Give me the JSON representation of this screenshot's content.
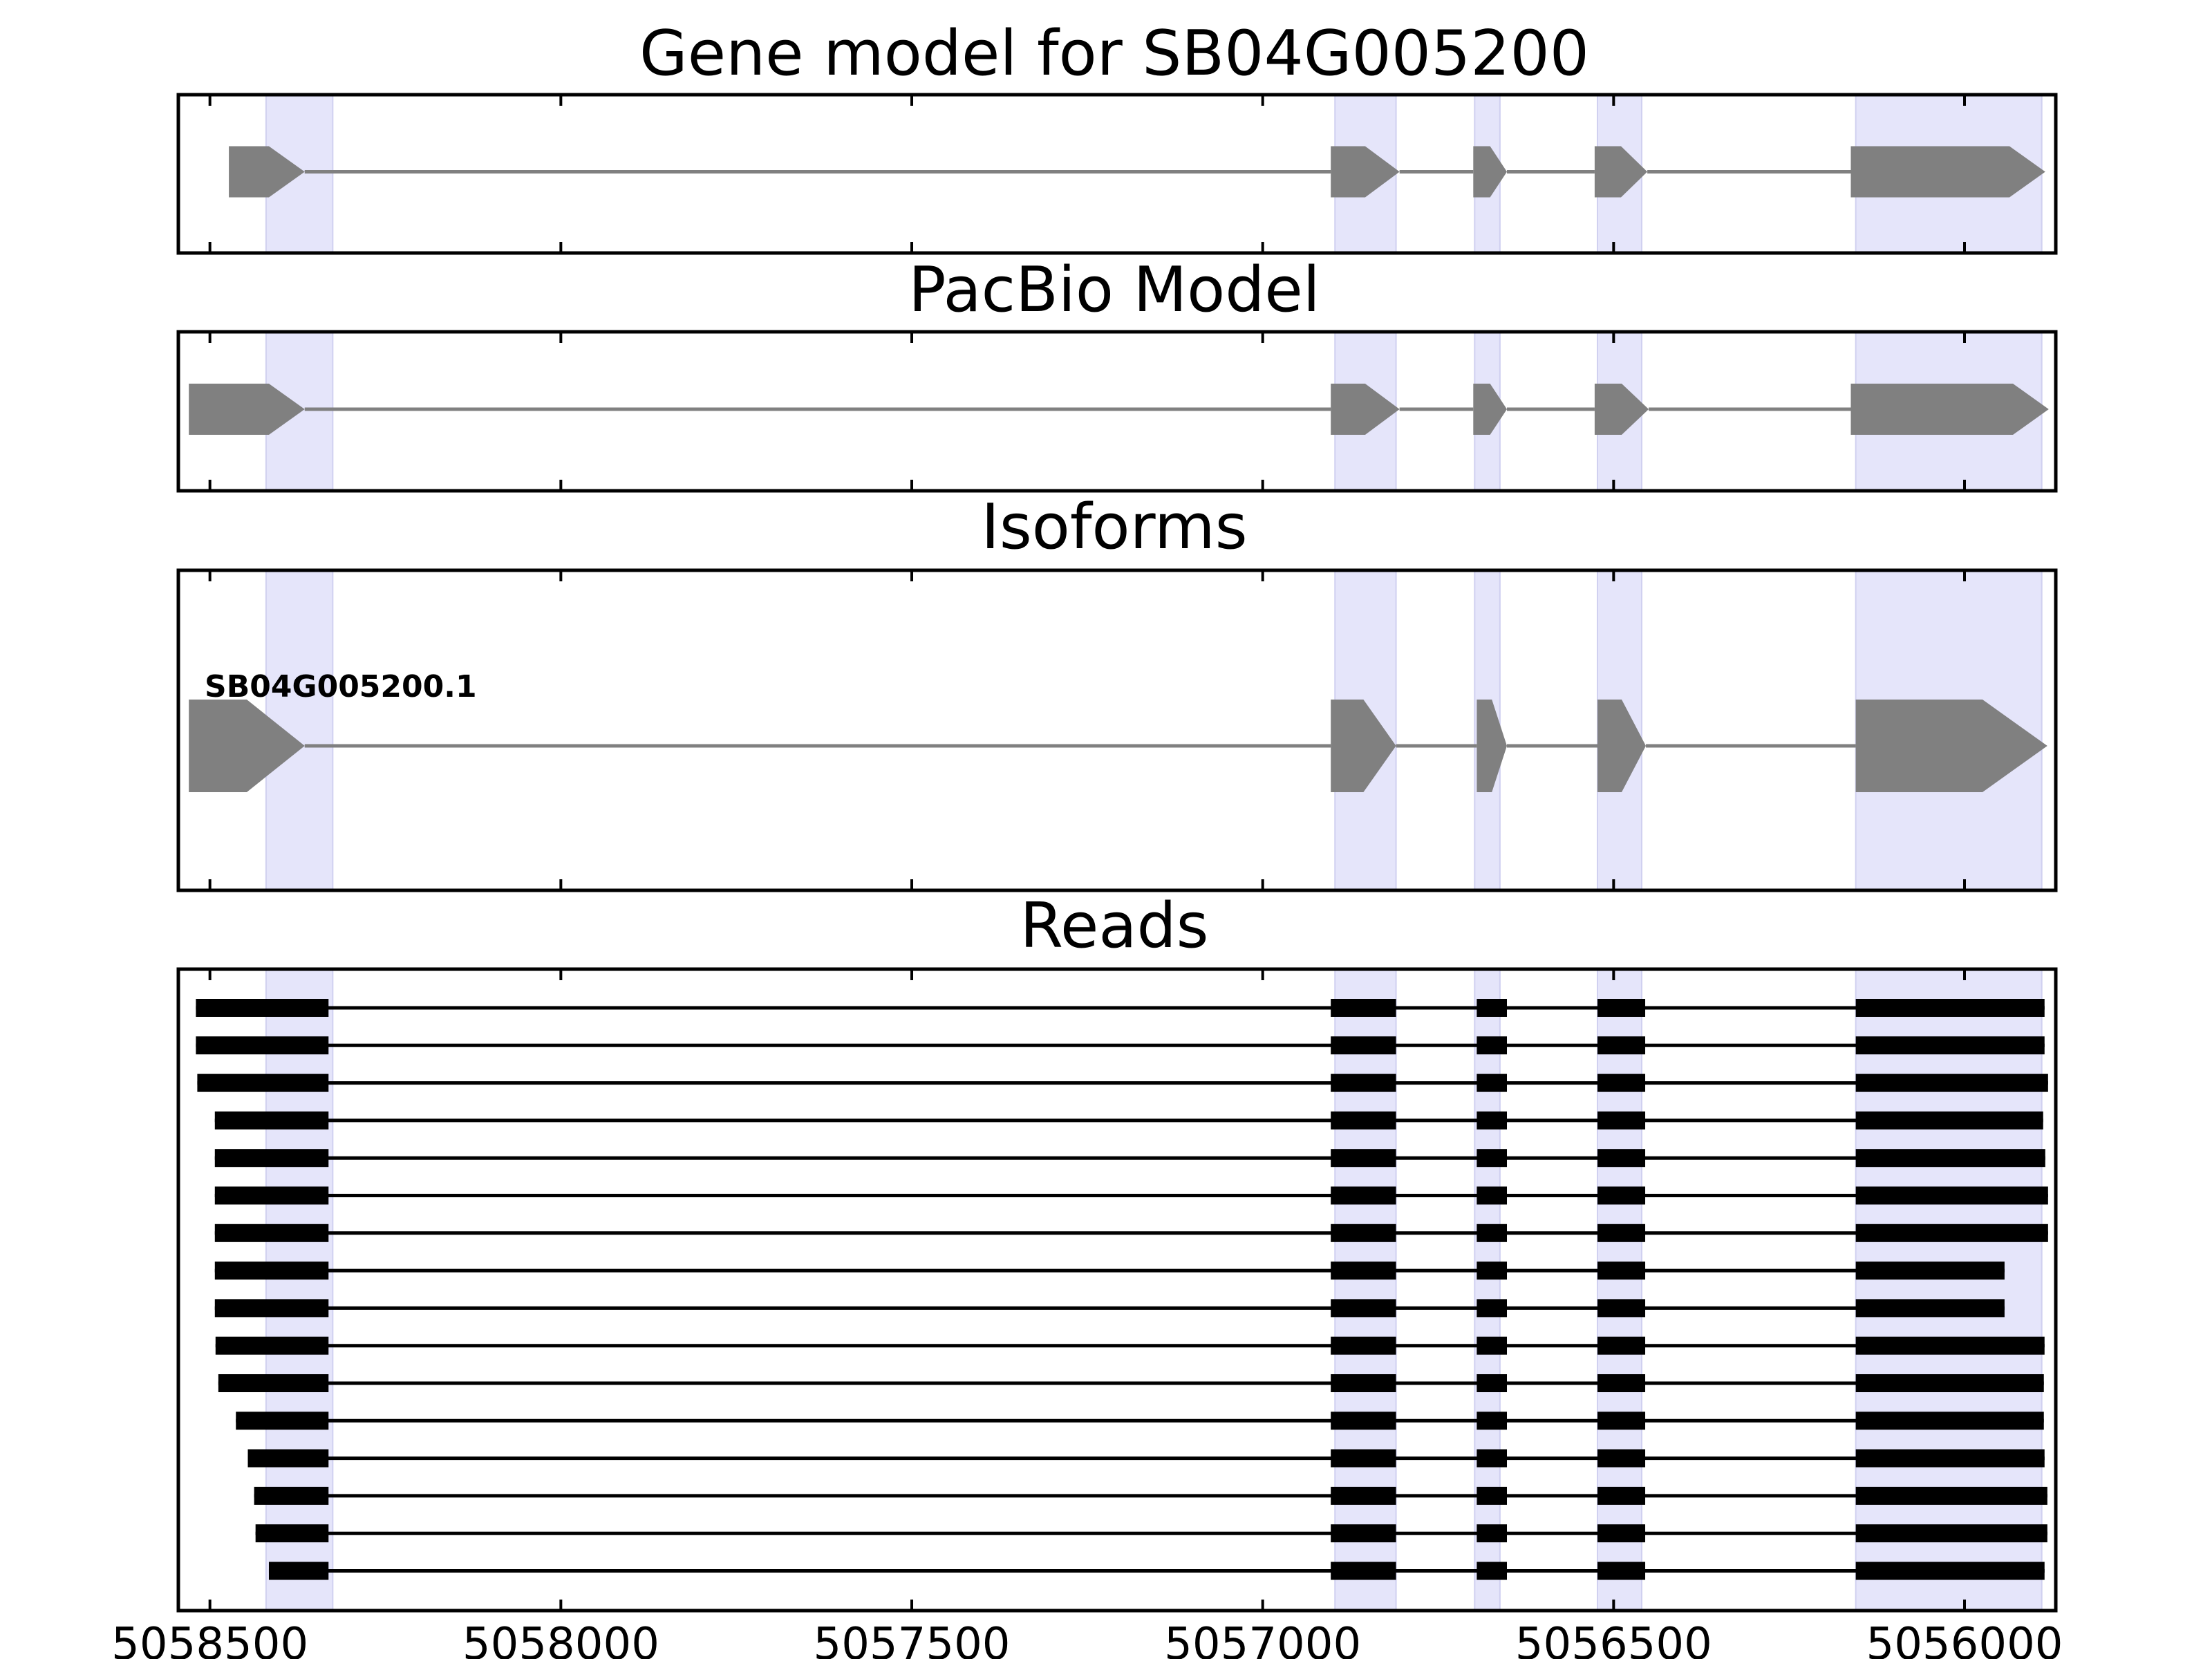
{
  "chart_data": {
    "type": "gene-track",
    "xlim": [
      5058545,
      5055870
    ],
    "xticks": [
      5058500,
      5058000,
      5057500,
      5057000,
      5056500,
      5056000
    ],
    "xtick_labels": [
      "5058500",
      "5058000",
      "5057500",
      "5057000",
      "5056500",
      "5056000"
    ],
    "highlight_regions": [
      [
        5058420,
        5058325
      ],
      [
        5056897,
        5056810
      ],
      [
        5056698,
        5056662
      ],
      [
        5056523,
        5056460
      ],
      [
        5056155,
        5055890
      ]
    ],
    "colors": {
      "highlight": "#e5e5fa",
      "feature": "#808080",
      "read": "#000000",
      "frame": "#000000"
    },
    "panels": [
      {
        "title": "Gene model for SB04G005200",
        "type": "gene_model",
        "exons": [
          [
            5058473,
            5058365
          ],
          [
            5056903,
            5056805
          ],
          [
            5056700,
            5056652
          ],
          [
            5056527,
            5056452
          ],
          [
            5056162,
            5055885
          ]
        ]
      },
      {
        "title": "PacBio Model",
        "type": "gene_model",
        "exons": [
          [
            5058530,
            5058365
          ],
          [
            5056903,
            5056805
          ],
          [
            5056700,
            5056652
          ],
          [
            5056527,
            5056450
          ],
          [
            5056162,
            5055880
          ]
        ]
      },
      {
        "title": "Isoforms",
        "type": "isoforms",
        "isoform_label": "SB04G005200.1",
        "exons": [
          [
            5058530,
            5058365
          ],
          [
            5056903,
            5056810
          ],
          [
            5056695,
            5056652
          ],
          [
            5056523,
            5056454
          ],
          [
            5056155,
            5055882
          ]
        ]
      },
      {
        "title": "Reads",
        "type": "reads",
        "inner_exons": [
          [
            5058420,
            5058331
          ],
          [
            5056903,
            5056810
          ],
          [
            5056695,
            5056652
          ],
          [
            5056523,
            5056455
          ],
          [
            5056155,
            5056155
          ]
        ],
        "reads": [
          {
            "start": 5058520,
            "end": 5055886
          },
          {
            "start": 5058520,
            "end": 5055886
          },
          {
            "start": 5058518,
            "end": 5055881
          },
          {
            "start": 5058493,
            "end": 5055888
          },
          {
            "start": 5058493,
            "end": 5055885
          },
          {
            "start": 5058493,
            "end": 5055881
          },
          {
            "start": 5058493,
            "end": 5055881
          },
          {
            "start": 5058493,
            "end": 5055943
          },
          {
            "start": 5058493,
            "end": 5055943
          },
          {
            "start": 5058492,
            "end": 5055886
          },
          {
            "start": 5058488,
            "end": 5055887
          },
          {
            "start": 5058463,
            "end": 5055887
          },
          {
            "start": 5058446,
            "end": 5055886
          },
          {
            "start": 5058437,
            "end": 5055882
          },
          {
            "start": 5058435,
            "end": 5055882
          },
          {
            "start": 5058416,
            "end": 5055886
          }
        ]
      }
    ]
  }
}
